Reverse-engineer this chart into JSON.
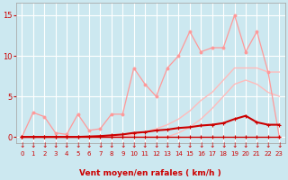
{
  "bg_color": "#cce8f0",
  "grid_color": "#ffffff",
  "xlabel": "Vent moyen/en rafales ( km/h )",
  "xlabel_color": "#cc0000",
  "tick_color": "#cc0000",
  "xlim": [
    -0.5,
    23.5
  ],
  "ylim": [
    -0.8,
    16.5
  ],
  "yticks": [
    0,
    5,
    10,
    15
  ],
  "xticks": [
    0,
    1,
    2,
    3,
    4,
    5,
    6,
    7,
    8,
    9,
    10,
    11,
    12,
    13,
    14,
    15,
    16,
    17,
    18,
    19,
    20,
    21,
    22,
    23
  ],
  "lines": [
    {
      "x": [
        0,
        1,
        2,
        3,
        4,
        5,
        6,
        7,
        8,
        9,
        10,
        11,
        12,
        13,
        14,
        15,
        16,
        17,
        18,
        19,
        20,
        21,
        22,
        23
      ],
      "y": [
        0,
        0,
        0,
        0,
        0,
        0,
        0,
        0,
        0,
        0,
        0.3,
        0.6,
        1.0,
        1.5,
        2.2,
        3.2,
        4.5,
        5.5,
        7.0,
        8.5,
        8.5,
        8.5,
        8.0,
        8.0
      ],
      "color": "#ffbbbb",
      "lw": 1.0,
      "marker": null,
      "ms": 0,
      "zorder": 2
    },
    {
      "x": [
        0,
        1,
        2,
        3,
        4,
        5,
        6,
        7,
        8,
        9,
        10,
        11,
        12,
        13,
        14,
        15,
        16,
        17,
        18,
        19,
        20,
        21,
        22,
        23
      ],
      "y": [
        0,
        0,
        0,
        0,
        0,
        0,
        0,
        0,
        0,
        0,
        0,
        0,
        0,
        0,
        0.5,
        1.2,
        2.2,
        3.5,
        5.0,
        6.5,
        7.0,
        6.5,
        5.5,
        5.0
      ],
      "color": "#ffbbbb",
      "lw": 1.0,
      "marker": null,
      "ms": 0,
      "zorder": 2
    },
    {
      "x": [
        0,
        1,
        2,
        3,
        4,
        5,
        6,
        7,
        8,
        9,
        10,
        11,
        12,
        13,
        14,
        15,
        16,
        17,
        18,
        19,
        20,
        21,
        22,
        23
      ],
      "y": [
        0,
        3.0,
        2.5,
        0.5,
        0.3,
        2.8,
        0.8,
        1.0,
        2.8,
        2.8,
        8.5,
        6.5,
        5.0,
        8.5,
        10.0,
        13.0,
        10.5,
        11.0,
        11.0,
        15.0,
        10.5,
        13.0,
        8.0,
        0
      ],
      "color": "#ff9999",
      "lw": 0.9,
      "marker": "o",
      "ms": 2.0,
      "zorder": 3
    },
    {
      "x": [
        0,
        1,
        2,
        3,
        4,
        5,
        6,
        7,
        8,
        9,
        10,
        11,
        12,
        13,
        14,
        15,
        16,
        17,
        18,
        19,
        20,
        21,
        22,
        23
      ],
      "y": [
        0,
        0,
        0,
        0,
        0,
        0,
        0.05,
        0.1,
        0.2,
        0.3,
        0.5,
        0.6,
        0.8,
        0.9,
        1.1,
        1.2,
        1.4,
        1.5,
        1.7,
        2.2,
        2.6,
        1.8,
        1.5,
        1.5
      ],
      "color": "#cc0000",
      "lw": 1.5,
      "marker": "+",
      "ms": 3.5,
      "zorder": 4
    },
    {
      "x": [
        0,
        1,
        2,
        3,
        4,
        5,
        6,
        7,
        8,
        9,
        10,
        11,
        12,
        13,
        14,
        15,
        16,
        17,
        18,
        19,
        20,
        21,
        22,
        23
      ],
      "y": [
        0,
        0,
        0,
        0,
        0,
        0,
        0,
        0,
        0,
        0,
        0,
        0,
        0,
        0,
        0,
        0,
        0,
        0,
        0,
        0,
        0,
        0,
        0,
        0
      ],
      "color": "#cc0000",
      "lw": 1.0,
      "marker": "+",
      "ms": 3.5,
      "zorder": 4
    }
  ],
  "arrow_symbol": "↓",
  "wind_y": -0.55,
  "arrow_fontsize": 5.5
}
